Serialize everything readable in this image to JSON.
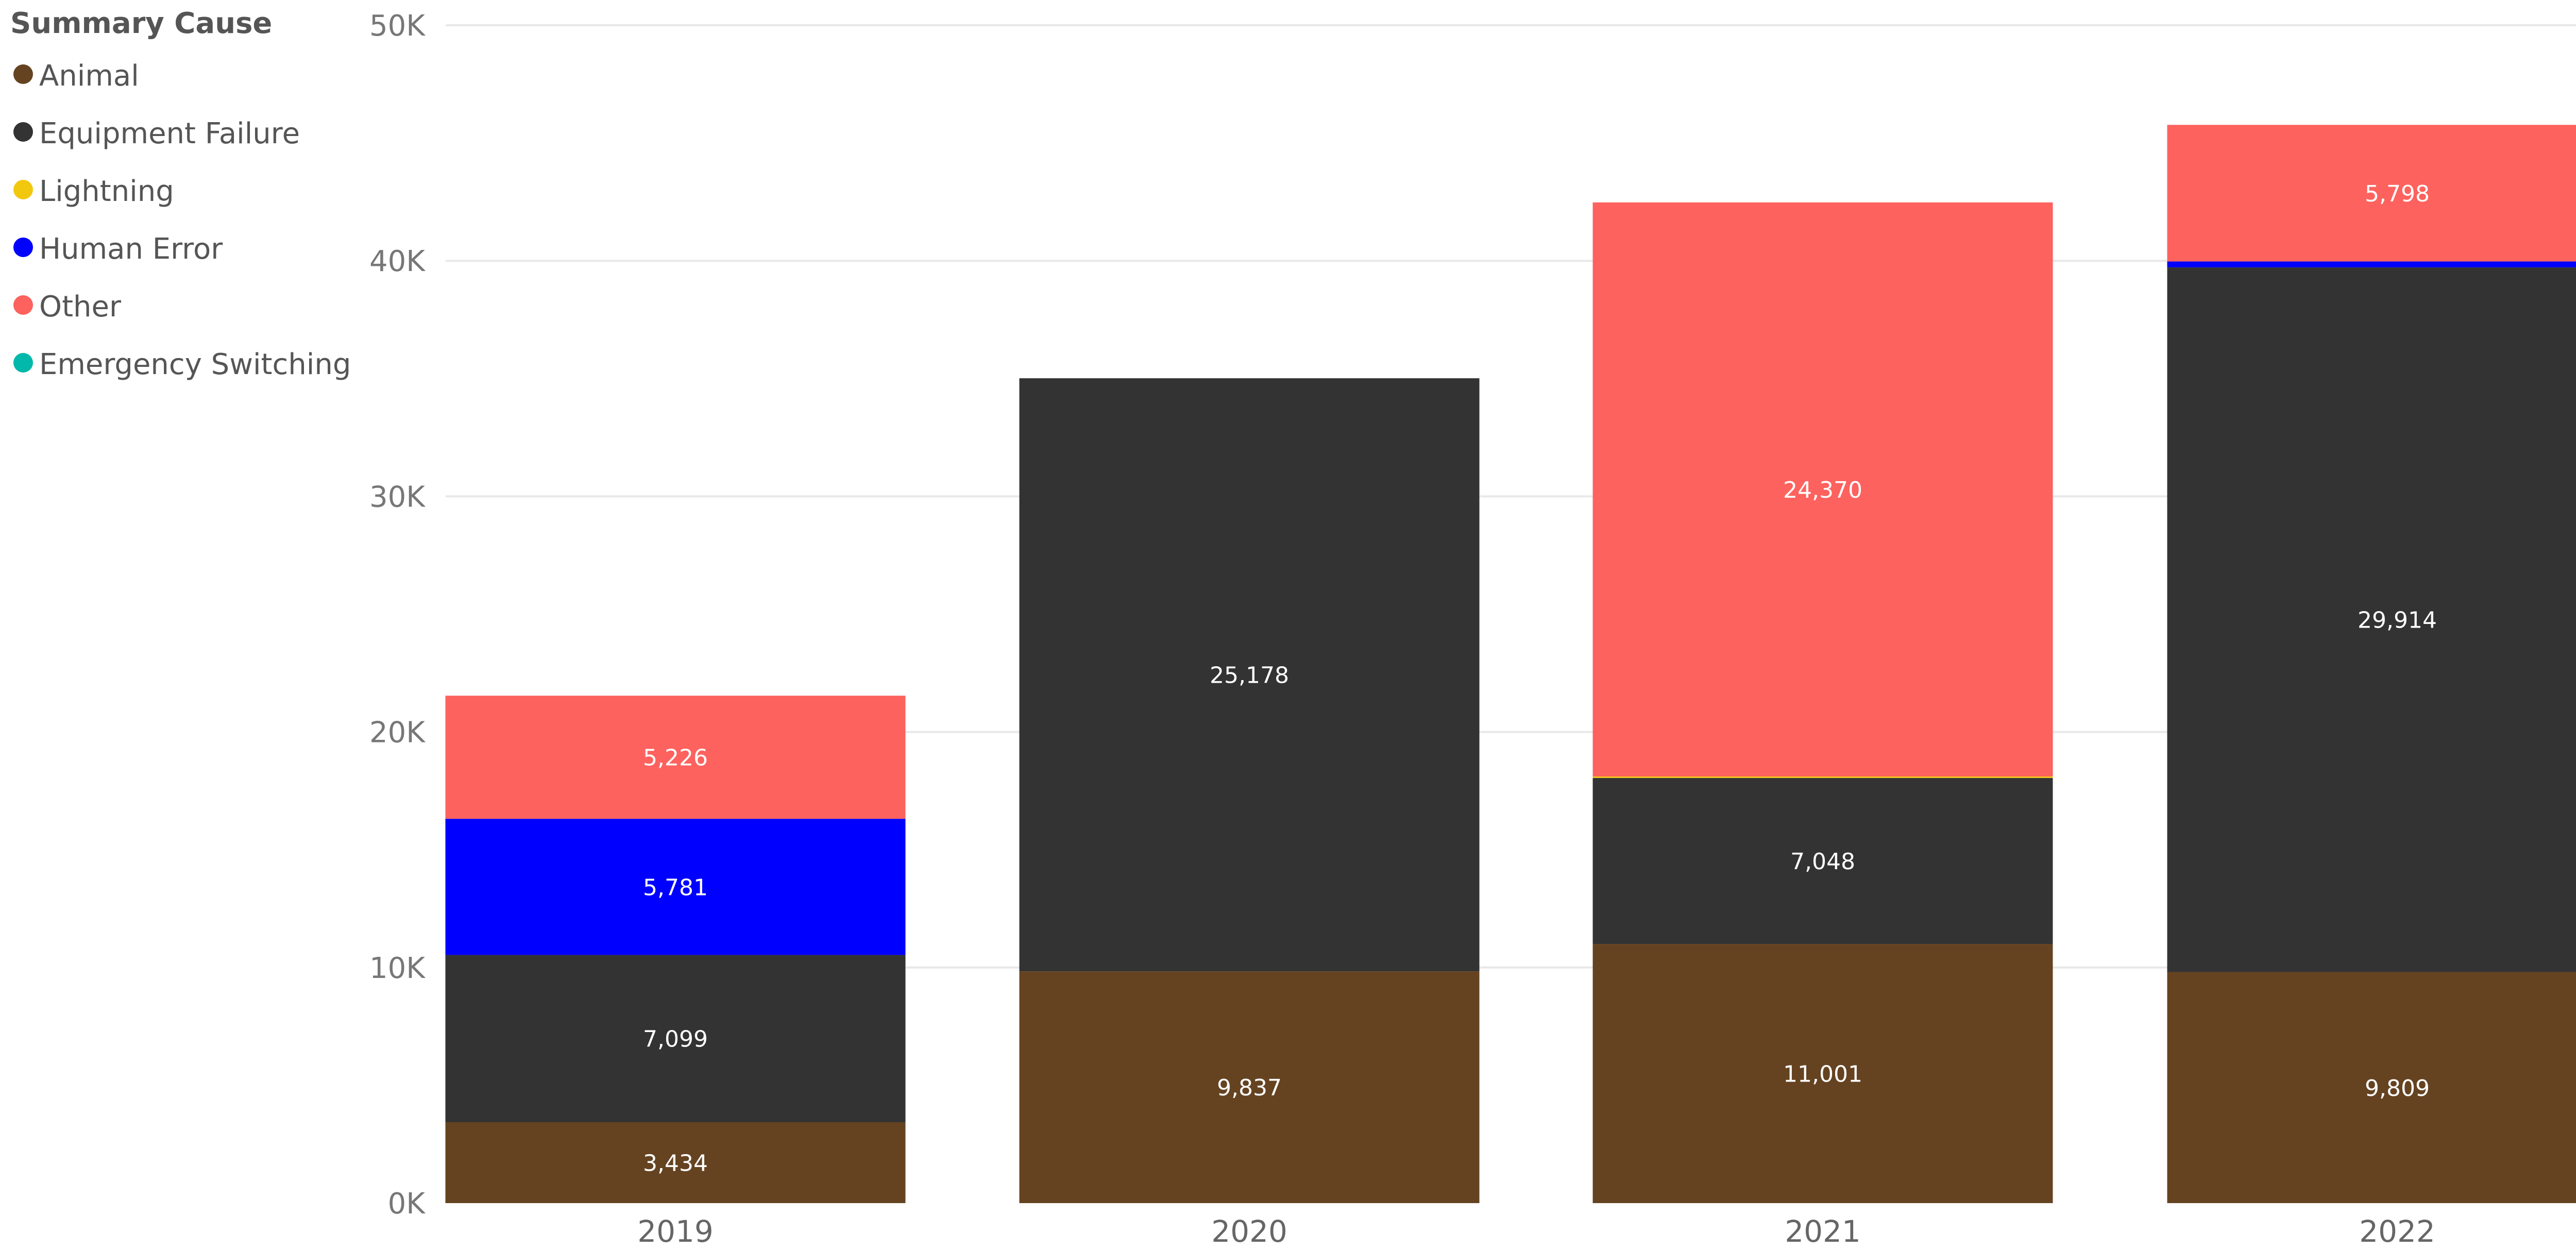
{
  "legend": {
    "title": "Summary Cause"
  },
  "chart_data": {
    "type": "bar",
    "stacked": true,
    "categories": [
      "2019",
      "2020",
      "2021",
      "2022"
    ],
    "series": [
      {
        "name": "Animal",
        "color": "#654321",
        "values": [
          3434,
          9837,
          11001,
          9809
        ]
      },
      {
        "name": "Equipment Failure",
        "color": "#333333",
        "values": [
          7099,
          25178,
          7048,
          29914
        ]
      },
      {
        "name": "Lightning",
        "color": "#F2C80F",
        "values": [
          0,
          0,
          60,
          0
        ]
      },
      {
        "name": "Human Error",
        "color": "#0000FF",
        "values": [
          5781,
          0,
          0,
          250
        ]
      },
      {
        "name": "Other",
        "color": "#FD625E",
        "values": [
          5226,
          0,
          24370,
          5798
        ]
      },
      {
        "name": "Emergency Switching",
        "color": "#01B8AA",
        "values": [
          0,
          0,
          0,
          0
        ]
      }
    ],
    "data_labels": [
      {
        "category": "2019",
        "series": "Animal",
        "text": "3,434"
      },
      {
        "category": "2019",
        "series": "Equipment Failure",
        "text": "7,099"
      },
      {
        "category": "2019",
        "series": "Human Error",
        "text": "5,781"
      },
      {
        "category": "2019",
        "series": "Other",
        "text": "5,226"
      },
      {
        "category": "2020",
        "series": "Animal",
        "text": "9,837"
      },
      {
        "category": "2020",
        "series": "Equipment Failure",
        "text": "25,178"
      },
      {
        "category": "2021",
        "series": "Animal",
        "text": "11,001"
      },
      {
        "category": "2021",
        "series": "Equipment Failure",
        "text": "7,048"
      },
      {
        "category": "2021",
        "series": "Other",
        "text": "24,370"
      },
      {
        "category": "2022",
        "series": "Animal",
        "text": "9,809"
      },
      {
        "category": "2022",
        "series": "Equipment Failure",
        "text": "29,914"
      },
      {
        "category": "2022",
        "series": "Other",
        "text": "5,798"
      }
    ],
    "y_ticks": [
      {
        "value": 0,
        "label": "0K"
      },
      {
        "value": 10000,
        "label": "10K"
      },
      {
        "value": 20000,
        "label": "20K"
      },
      {
        "value": 30000,
        "label": "30K"
      },
      {
        "value": 40000,
        "label": "40K"
      },
      {
        "value": 50000,
        "label": "50K"
      }
    ],
    "ylim": [
      0,
      50000
    ],
    "grid": true,
    "legend_position": "top-left",
    "title": "",
    "xlabel": "",
    "ylabel": ""
  }
}
